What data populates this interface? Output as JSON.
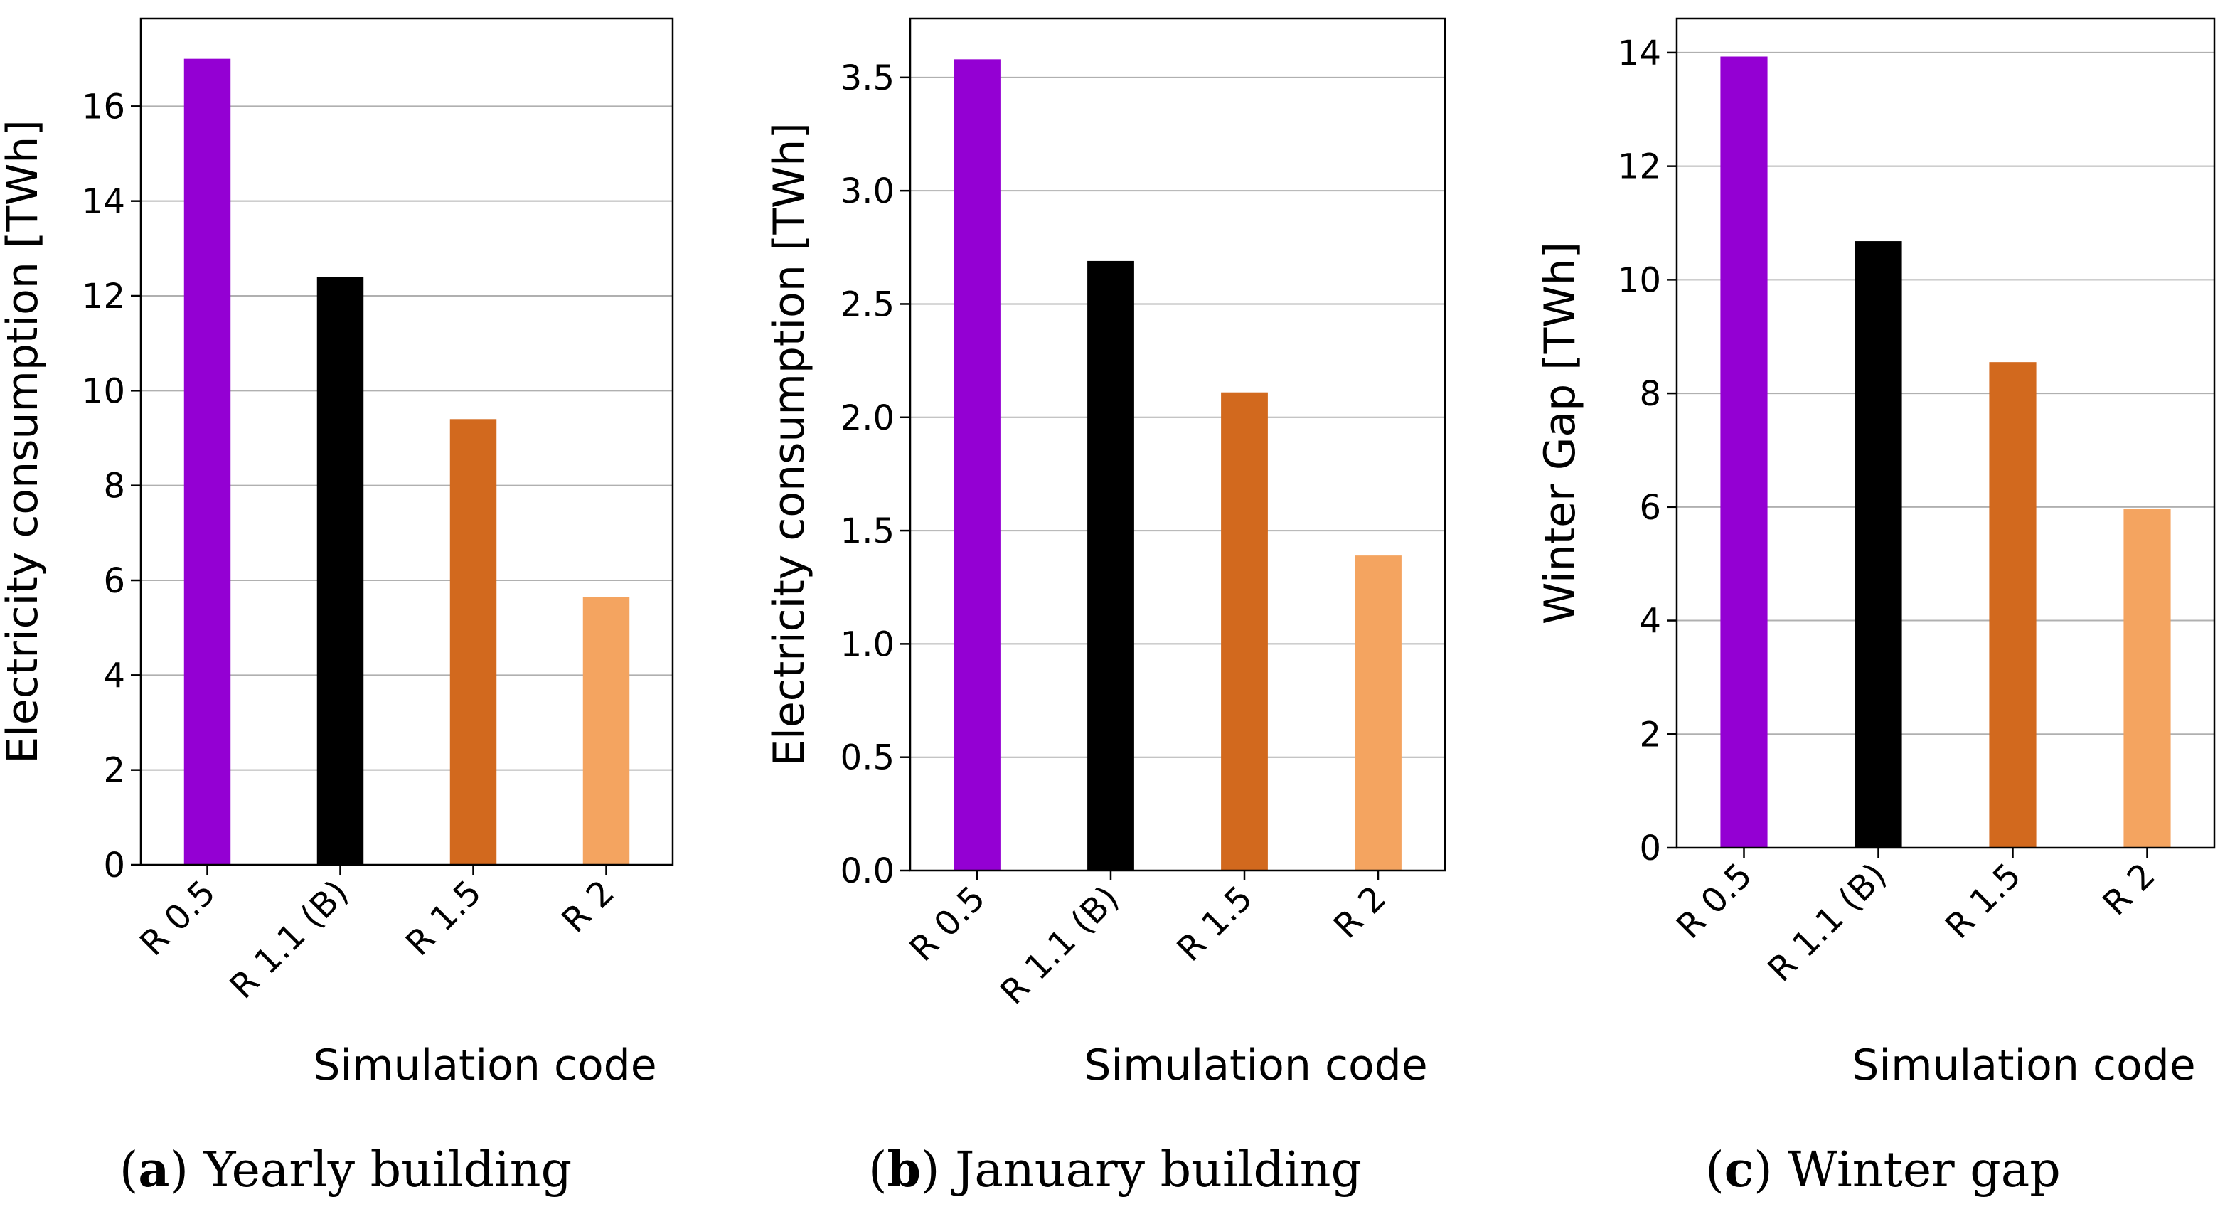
{
  "chart_data": [
    {
      "type": "bar",
      "caption_letter": "a",
      "caption_text": "Yearly building",
      "categories": [
        "R 0.5",
        "R 1.1 (B)",
        "R 1.5",
        "R 2"
      ],
      "values": [
        17.0,
        12.4,
        9.4,
        5.65
      ],
      "colors": [
        "#9400d3",
        "#000000",
        "#d2691e",
        "#f4a460"
      ],
      "xlabel": "Simulation code",
      "ylabel": "Electricity consumption [TWh]",
      "ylim": [
        0,
        17.85
      ],
      "yticks": [
        0,
        2,
        4,
        6,
        8,
        10,
        12,
        14,
        16
      ],
      "ytick_labels": [
        "0",
        "2",
        "4",
        "6",
        "8",
        "10",
        "12",
        "14",
        "16"
      ],
      "grid": true
    },
    {
      "type": "bar",
      "caption_letter": "b",
      "caption_text": "January building",
      "categories": [
        "R 0.5",
        "R 1.1 (B)",
        "R 1.5",
        "R 2"
      ],
      "values": [
        3.58,
        2.69,
        2.11,
        1.39
      ],
      "colors": [
        "#9400d3",
        "#000000",
        "#d2691e",
        "#f4a460"
      ],
      "xlabel": "Simulation code",
      "ylabel": "Electricity consumption [TWh]",
      "ylim": [
        0,
        3.76
      ],
      "yticks": [
        0.0,
        0.5,
        1.0,
        1.5,
        2.0,
        2.5,
        3.0,
        3.5
      ],
      "ytick_labels": [
        "0.0",
        "0.5",
        "1.0",
        "1.5",
        "2.0",
        "2.5",
        "3.0",
        "3.5"
      ],
      "grid": true
    },
    {
      "type": "bar",
      "caption_letter": "c",
      "caption_text": "Winter gap",
      "categories": [
        "R 0.5",
        "R 1.1 (B)",
        "R 1.5",
        "R 2"
      ],
      "values": [
        13.93,
        10.68,
        8.55,
        5.96
      ],
      "colors": [
        "#9400d3",
        "#000000",
        "#d2691e",
        "#f4a460"
      ],
      "xlabel": "Simulation code",
      "ylabel": "Winter Gap  [TWh]",
      "ylim": [
        0,
        14.6
      ],
      "yticks": [
        0,
        2,
        4,
        6,
        8,
        10,
        12,
        14
      ],
      "ytick_labels": [
        "0",
        "2",
        "4",
        "6",
        "8",
        "10",
        "12",
        "14"
      ],
      "grid": true
    }
  ]
}
